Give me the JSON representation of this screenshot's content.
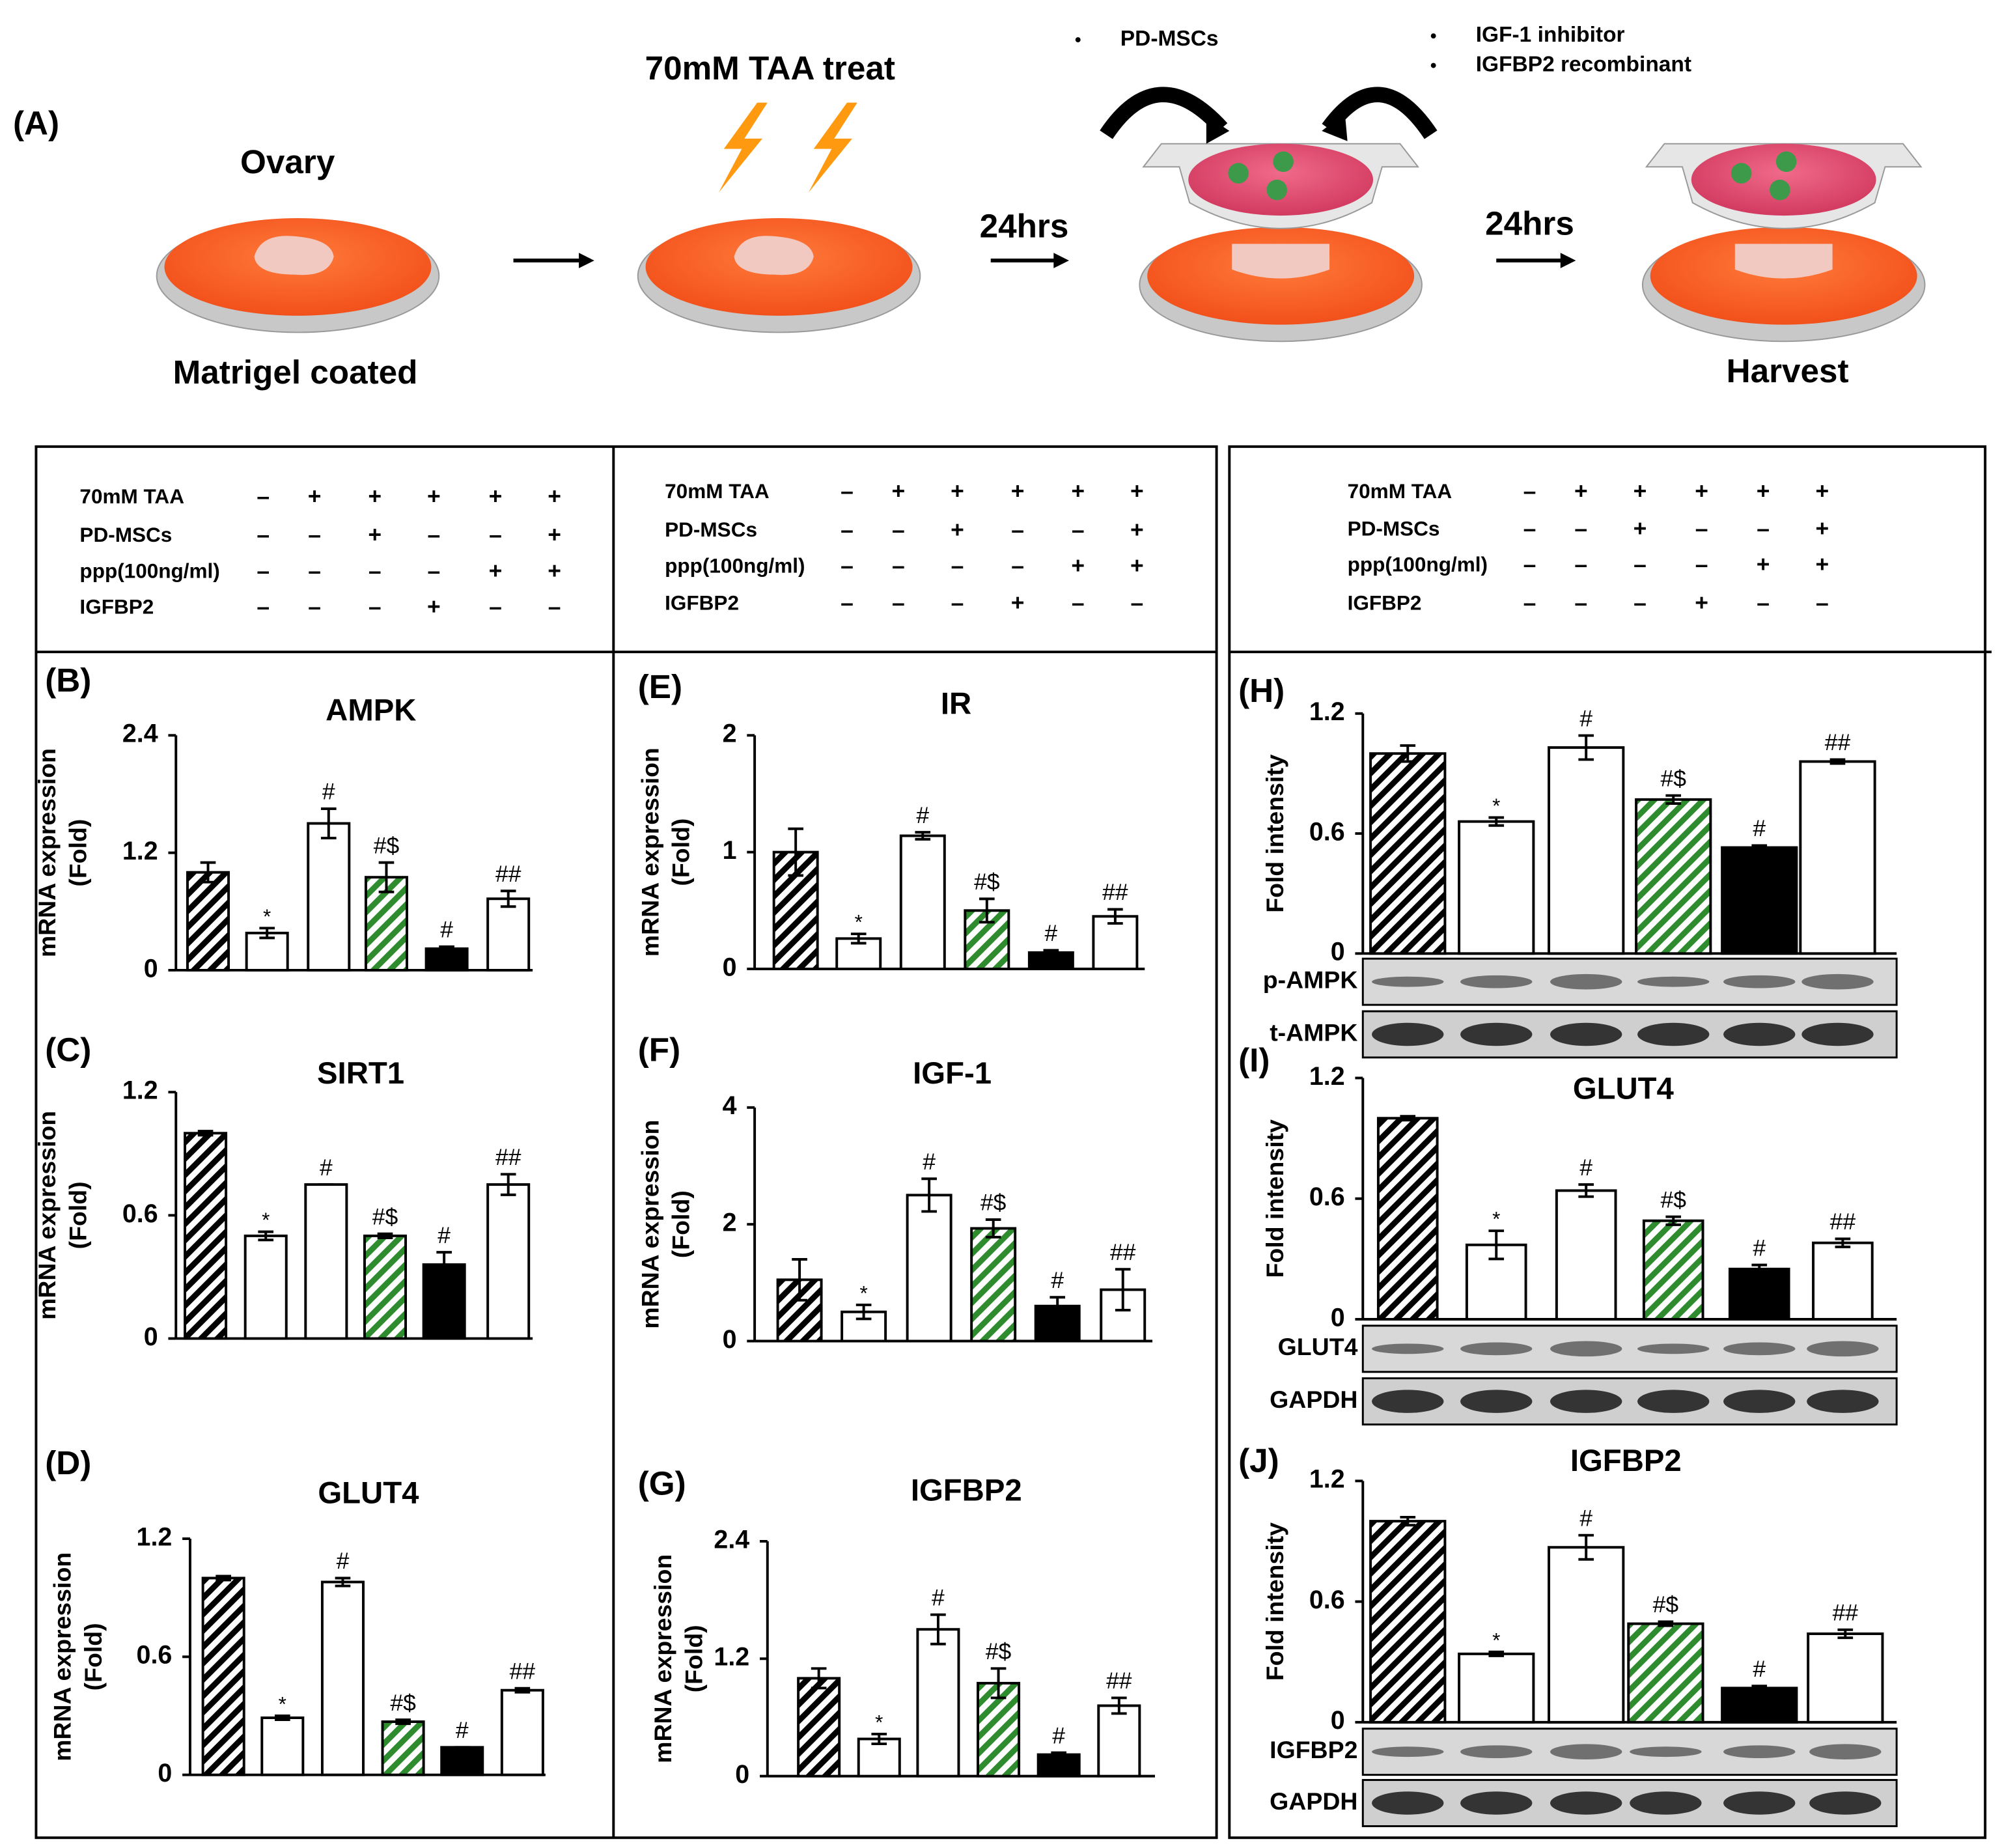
{
  "diagram": {
    "panel": "(A)",
    "ovary": "Ovary",
    "matrigel": "Matrigel coated",
    "treat": "70mM TAA treat",
    "time1": "24hrs",
    "time2": "24hrs",
    "cells": "PD-MSCs",
    "inhibitor": "IGF-1 inhibitor",
    "recombinant": "IGFBP2 recombinant",
    "harvest": "Harvest"
  },
  "tables": [
    {
      "rows": [
        {
          "label": "70mM TAA",
          "signs": [
            "–",
            "+",
            "+",
            "+",
            "+",
            "+"
          ]
        },
        {
          "label": "PD-MSCs",
          "signs": [
            "–",
            "–",
            "+",
            "–",
            "–",
            "+"
          ]
        },
        {
          "label": "ppp(100ng/ml)",
          "signs": [
            "–",
            "–",
            "–",
            "–",
            "+",
            "+"
          ]
        },
        {
          "label": "IGFBP2",
          "signs": [
            "–",
            "–",
            "–",
            "+",
            "–",
            "–"
          ]
        }
      ]
    },
    {
      "rows": [
        {
          "label": "70mM TAA",
          "signs": [
            "–",
            "+",
            "+",
            "+",
            "+",
            "+"
          ]
        },
        {
          "label": "PD-MSCs",
          "signs": [
            "–",
            "–",
            "+",
            "–",
            "–",
            "+"
          ]
        },
        {
          "label": "ppp(100ng/ml)",
          "signs": [
            "–",
            "–",
            "–",
            "–",
            "+",
            "+"
          ]
        },
        {
          "label": "IGFBP2",
          "signs": [
            "–",
            "–",
            "–",
            "+",
            "–",
            "–"
          ]
        }
      ]
    },
    {
      "rows": [
        {
          "label": "70mM TAA",
          "signs": [
            "–",
            "+",
            "+",
            "+",
            "+",
            "+"
          ]
        },
        {
          "label": "PD-MSCs",
          "signs": [
            "–",
            "–",
            "+",
            "–",
            "–",
            "+"
          ]
        },
        {
          "label": "ppp(100ng/ml)",
          "signs": [
            "–",
            "–",
            "–",
            "–",
            "+",
            "+"
          ]
        },
        {
          "label": "IGFBP2",
          "signs": [
            "–",
            "–",
            "–",
            "+",
            "–",
            "–"
          ]
        }
      ]
    }
  ],
  "chart_data": [
    {
      "type": "bar",
      "panel": "(B)",
      "title": "AMPK",
      "ylabel": [
        "mRNA expression",
        "(Fold)"
      ],
      "ylim": [
        0,
        2.4
      ],
      "yticks": [
        0,
        1.2,
        2.4
      ],
      "values": [
        1.0,
        0.38,
        1.5,
        0.95,
        0.22,
        0.73
      ],
      "errors": [
        0.1,
        0.05,
        0.15,
        0.15,
        0.02,
        0.08
      ],
      "annotations": [
        null,
        "*",
        "#",
        "#$",
        "#",
        "##"
      ],
      "colors": [
        "#000000",
        "#ffffff",
        "#ffffff",
        "#2e8b2e",
        "#000000",
        "#ffffff"
      ],
      "hatch": [
        true,
        false,
        false,
        true,
        false,
        false
      ]
    },
    {
      "type": "bar",
      "panel": "(C)",
      "title": "SIRT1",
      "ylabel": [
        "mRNA expression",
        "(Fold)"
      ],
      "ylim": [
        0,
        1.2
      ],
      "yticks": [
        0,
        0.6,
        1.2
      ],
      "values": [
        1.0,
        0.5,
        0.75,
        0.5,
        0.36,
        0.75
      ],
      "errors": [
        0.01,
        0.02,
        0,
        0.01,
        0.06,
        0.05
      ],
      "annotations": [
        null,
        "*",
        "#",
        "#$",
        "#",
        "##"
      ],
      "colors": [
        "#000000",
        "#ffffff",
        "#ffffff",
        "#2e8b2e",
        "#000000",
        "#ffffff"
      ],
      "hatch": [
        true,
        false,
        false,
        true,
        false,
        false
      ]
    },
    {
      "type": "bar",
      "panel": "(D)",
      "title": "GLUT4",
      "ylabel": [
        "mRNA expression",
        "(Fold)"
      ],
      "ylim": [
        0,
        1.2
      ],
      "yticks": [
        0,
        0.6,
        1.2
      ],
      "values": [
        1.0,
        0.29,
        0.98,
        0.27,
        0.14,
        0.43
      ],
      "errors": [
        0.01,
        0.01,
        0.02,
        0.01,
        0,
        0.01
      ],
      "annotations": [
        null,
        "*",
        "#",
        "#$",
        "#",
        "##"
      ],
      "colors": [
        "#000000",
        "#ffffff",
        "#ffffff",
        "#2e8b2e",
        "#000000",
        "#ffffff"
      ],
      "hatch": [
        true,
        false,
        false,
        true,
        false,
        false
      ]
    },
    {
      "type": "bar",
      "panel": "(E)",
      "title": "IR",
      "ylabel": [
        "mRNA expression",
        "(Fold)"
      ],
      "ylim": [
        0,
        2
      ],
      "yticks": [
        0,
        1,
        2
      ],
      "values": [
        1.0,
        0.26,
        1.14,
        0.5,
        0.14,
        0.45
      ],
      "errors": [
        0.2,
        0.04,
        0.03,
        0.1,
        0.02,
        0.06
      ],
      "annotations": [
        null,
        "*",
        "#",
        "#$",
        "#",
        "##"
      ],
      "colors": [
        "#000000",
        "#ffffff",
        "#ffffff",
        "#2e8b2e",
        "#000000",
        "#ffffff"
      ],
      "hatch": [
        true,
        false,
        false,
        true,
        false,
        false
      ]
    },
    {
      "type": "bar",
      "panel": "(F)",
      "title": "IGF-1",
      "ylabel": [
        "mRNA expression",
        "(Fold)"
      ],
      "ylim": [
        0,
        4
      ],
      "yticks": [
        0,
        2,
        4
      ],
      "values": [
        1.05,
        0.5,
        2.5,
        1.93,
        0.6,
        0.88
      ],
      "errors": [
        0.35,
        0.12,
        0.28,
        0.15,
        0.15,
        0.35
      ],
      "annotations": [
        null,
        "*",
        "#",
        "#$",
        "#",
        "##"
      ],
      "colors": [
        "#000000",
        "#ffffff",
        "#ffffff",
        "#2e8b2e",
        "#000000",
        "#ffffff"
      ],
      "hatch": [
        true,
        false,
        false,
        true,
        false,
        false
      ]
    },
    {
      "type": "bar",
      "panel": "(G)",
      "title": "IGFBP2",
      "ylabel": [
        "mRNA expression",
        "(Fold)"
      ],
      "ylim": [
        0,
        2.4
      ],
      "yticks": [
        0,
        1.2,
        2.4
      ],
      "values": [
        1.0,
        0.38,
        1.5,
        0.95,
        0.22,
        0.72
      ],
      "errors": [
        0.1,
        0.05,
        0.15,
        0.15,
        0.02,
        0.08
      ],
      "annotations": [
        null,
        "*",
        "#",
        "#$",
        "#",
        "##"
      ],
      "colors": [
        "#000000",
        "#ffffff",
        "#ffffff",
        "#2e8b2e",
        "#000000",
        "#ffffff"
      ],
      "hatch": [
        true,
        false,
        false,
        true,
        false,
        false
      ]
    },
    {
      "type": "bar",
      "panel": "(H)",
      "ylabel": [
        "Fold intensity"
      ],
      "ylim": [
        0,
        1.2
      ],
      "yticks": [
        0,
        0.6,
        1.2
      ],
      "values": [
        1.0,
        0.66,
        1.03,
        0.77,
        0.53,
        0.96
      ],
      "errors": [
        0.04,
        0.02,
        0.06,
        0.02,
        0.01,
        0.01
      ],
      "annotations": [
        null,
        "*",
        "#",
        "#$",
        "#",
        "##"
      ],
      "colors": [
        "#000000",
        "#ffffff",
        "#ffffff",
        "#2e8b2e",
        "#000000",
        "#ffffff"
      ],
      "hatch": [
        true,
        false,
        false,
        true,
        false,
        false
      ],
      "blots": [
        "p-AMPK",
        "t-AMPK"
      ]
    },
    {
      "type": "bar",
      "panel": "(I)",
      "title": "GLUT4",
      "ylabel": [
        "Fold intensity"
      ],
      "ylim": [
        0,
        1.2
      ],
      "yticks": [
        0,
        0.6,
        1.2
      ],
      "values": [
        1.0,
        0.37,
        0.64,
        0.49,
        0.25,
        0.38
      ],
      "errors": [
        0.01,
        0.07,
        0.03,
        0.02,
        0.02,
        0.02
      ],
      "annotations": [
        null,
        "*",
        "#",
        "#$",
        "#",
        "##"
      ],
      "colors": [
        "#000000",
        "#ffffff",
        "#ffffff",
        "#2e8b2e",
        "#000000",
        "#ffffff"
      ],
      "hatch": [
        true,
        false,
        false,
        true,
        false,
        false
      ],
      "blots": [
        "GLUT4",
        "GAPDH"
      ]
    },
    {
      "type": "bar",
      "panel": "(J)",
      "title": "IGFBP2",
      "ylabel": [
        "Fold intensity"
      ],
      "ylim": [
        0,
        1.2
      ],
      "yticks": [
        0,
        0.6,
        1.2
      ],
      "values": [
        1.0,
        0.34,
        0.87,
        0.49,
        0.17,
        0.44
      ],
      "errors": [
        0.02,
        0.01,
        0.06,
        0.01,
        0.01,
        0.02
      ],
      "annotations": [
        null,
        "*",
        "#",
        "#$",
        "#",
        "##"
      ],
      "colors": [
        "#000000",
        "#ffffff",
        "#ffffff",
        "#2e8b2e",
        "#000000",
        "#ffffff"
      ],
      "hatch": [
        true,
        false,
        false,
        true,
        false,
        false
      ],
      "blots": [
        "IGFBP2",
        "GAPDH"
      ]
    }
  ]
}
